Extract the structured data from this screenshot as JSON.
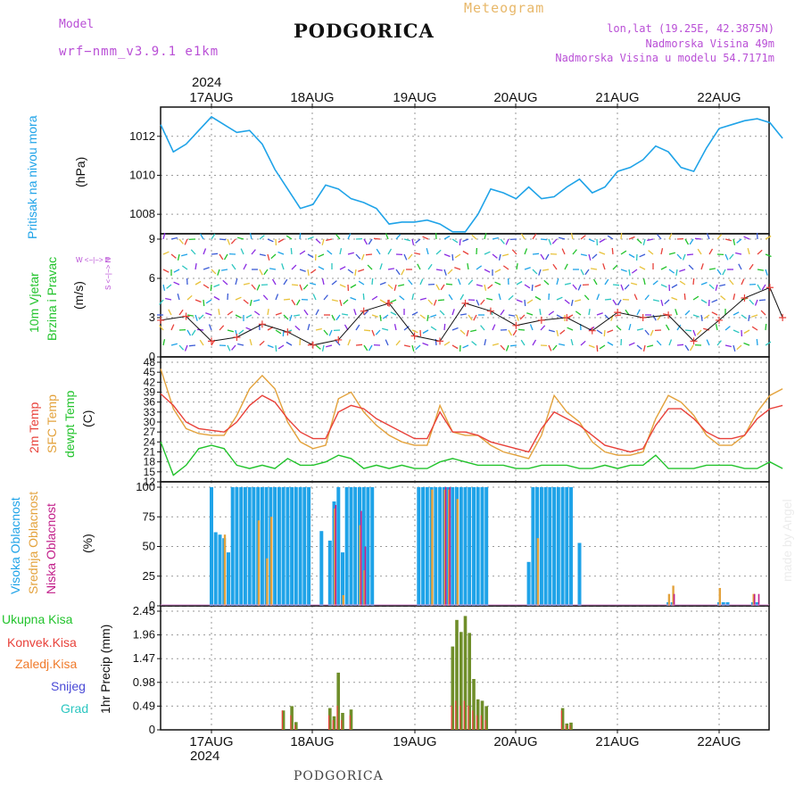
{
  "header": {
    "model_label": "Model",
    "model_name": "wrf−nmm_v3.9.1  e1km",
    "title": "PODGORICA",
    "meteogram": "Meteogram",
    "lonlat": "lon,lat (19.25E, 42.3875N)",
    "elevation": "Nadmorska Visina 49m",
    "model_elevation": "Nadmorska Visina u modelu 54.7171m",
    "year_top": "2024",
    "year_bottom": "2024",
    "footer": "PODGORICA",
    "watermark": "made by Angel"
  },
  "axis_titles": {
    "pressure_name": "Pritisak na nivou mora",
    "pressure_unit": "(hPa)",
    "wind_name_1": "10m Vjetar",
    "wind_name_2": "Brzina i Pravac",
    "wind_unit": "(m/s)",
    "wind_compass": "W <−|−> E",
    "wind_compass_ns": "S <−|−> N",
    "temp_name_1": "2m Temp",
    "temp_name_2": "SFC Temp",
    "temp_name_3": "dewpt Temp",
    "temp_unit": "(C)",
    "cloud_name_1": "Visoka Oblacnost",
    "cloud_name_2": "Srednja Oblacnost",
    "cloud_name_3": "Niska Oblacnost",
    "cloud_unit": "(%)",
    "precip_unit": "1hr Precip (mm)"
  },
  "precip_legend": [
    "Ukupna Kisa",
    "Konvek.Kisa",
    "Zaledj.Kisa",
    "Snijeg",
    "Grad"
  ],
  "colors": {
    "pressure": "#1fa3e8",
    "temp2m": "#e8413a",
    "sfc": "#e3a23c",
    "dewpt": "#22c32c",
    "high_cloud": "#1fa3e8",
    "mid_cloud": "#e3a23c",
    "low_cloud": "#c21f8a",
    "total_rain": "#6f8e2a",
    "conv_rain": "#e8413a",
    "freezing": "#f07a2a",
    "snow": "#4a4ad6",
    "hail": "#2bc6c0",
    "legend_total": "#22c32c",
    "legend_conv": "#e8413a",
    "legend_freezing": "#f07a2a",
    "legend_snow": "#4a4ad6",
    "legend_hail": "#2bc6c0"
  },
  "chart_data": [
    {
      "type": "line",
      "panel": "pressure",
      "x": [
        "16AUG12",
        "16AUG15",
        "16AUG18",
        "16AUG21",
        "17AUG00",
        "17AUG03",
        "17AUG06",
        "17AUG09",
        "17AUG12",
        "17AUG15",
        "17AUG18",
        "17AUG21",
        "18AUG00",
        "18AUG03",
        "18AUG06",
        "18AUG09",
        "18AUG12",
        "18AUG15",
        "18AUG18",
        "18AUG21",
        "19AUG00",
        "19AUG03",
        "19AUG06",
        "19AUG09",
        "19AUG12",
        "19AUG15",
        "19AUG18",
        "19AUG21",
        "20AUG00",
        "20AUG03",
        "20AUG06",
        "20AUG09",
        "20AUG12",
        "20AUG15",
        "20AUG18",
        "20AUG21",
        "21AUG00",
        "21AUG03",
        "21AUG06",
        "21AUG09",
        "21AUG12",
        "21AUG15",
        "21AUG18",
        "21AUG21",
        "22AUG00",
        "22AUG03",
        "22AUG06",
        "22AUG09",
        "22AUG12",
        "22AUG15"
      ],
      "series": [
        {
          "name": "Pritisak na nivou mora",
          "values": [
            1012.6,
            1011.2,
            1011.6,
            1012.3,
            1013.0,
            1012.6,
            1012.2,
            1012.3,
            1011.6,
            1010.3,
            1009.3,
            1008.3,
            1008.5,
            1009.5,
            1009.3,
            1008.8,
            1008.6,
            1008.3,
            1007.5,
            1007.6,
            1007.6,
            1007.7,
            1007.5,
            1007.1,
            1007.1,
            1008.0,
            1009.3,
            1009.1,
            1008.8,
            1009.4,
            1008.8,
            1008.9,
            1009.4,
            1009.8,
            1009.1,
            1009.4,
            1010.2,
            1010.4,
            1010.8,
            1011.5,
            1011.2,
            1010.4,
            1010.2,
            1011.4,
            1012.4,
            1012.6,
            1012.8,
            1012.9,
            1012.7,
            1011.9
          ]
        }
      ],
      "ylim": [
        1007.0,
        1013.5
      ],
      "yticks": [
        1008,
        1010,
        1012
      ]
    },
    {
      "type": "line",
      "panel": "wind",
      "x": [
        "16AUG12",
        "16AUG18",
        "17AUG00",
        "17AUG06",
        "17AUG12",
        "17AUG18",
        "18AUG00",
        "18AUG06",
        "18AUG12",
        "18AUG18",
        "19AUG00",
        "19AUG06",
        "19AUG12",
        "19AUG18",
        "20AUG00",
        "20AUG06",
        "20AUG12",
        "20AUG18",
        "21AUG00",
        "21AUG06",
        "21AUG12",
        "21AUG18",
        "22AUG00",
        "22AUG06",
        "22AUG12",
        "22AUG15"
      ],
      "series": [
        {
          "name": "10m Vjetar",
          "values": [
            2.8,
            3.1,
            1.2,
            1.5,
            2.5,
            1.9,
            0.9,
            1.3,
            3.5,
            4.1,
            1.6,
            1.2,
            4.1,
            3.5,
            2.4,
            2.8,
            3.0,
            2.0,
            3.4,
            3.0,
            3.2,
            1.2,
            2.8,
            4.5,
            5.3,
            3.0
          ]
        }
      ],
      "ylim": [
        0,
        9
      ],
      "yticks": [
        0,
        3,
        6,
        9
      ]
    },
    {
      "type": "line",
      "panel": "temperature",
      "x": [
        "16AUG12",
        "16AUG15",
        "16AUG18",
        "16AUG21",
        "17AUG00",
        "17AUG03",
        "17AUG06",
        "17AUG09",
        "17AUG12",
        "17AUG15",
        "17AUG18",
        "17AUG21",
        "18AUG00",
        "18AUG03",
        "18AUG06",
        "18AUG09",
        "18AUG12",
        "18AUG15",
        "18AUG18",
        "18AUG21",
        "19AUG00",
        "19AUG03",
        "19AUG06",
        "19AUG09",
        "19AUG12",
        "19AUG15",
        "19AUG18",
        "19AUG21",
        "20AUG00",
        "20AUG03",
        "20AUG06",
        "20AUG09",
        "20AUG12",
        "20AUG15",
        "20AUG18",
        "20AUG21",
        "21AUG00",
        "21AUG03",
        "21AUG06",
        "21AUG09",
        "21AUG12",
        "21AUG15",
        "21AUG18",
        "21AUG21",
        "22AUG00",
        "22AUG03",
        "22AUG06",
        "22AUG09",
        "22AUG12",
        "22AUG15"
      ],
      "series": [
        {
          "name": "2m Temp",
          "values": [
            38.5,
            35,
            30,
            28,
            27.5,
            27,
            30,
            35,
            38,
            36,
            31,
            27,
            25,
            25,
            33,
            35,
            34,
            31,
            29,
            27,
            25,
            25,
            33,
            27,
            27,
            26,
            24,
            23,
            22,
            21,
            28,
            33,
            31,
            29,
            26,
            23,
            22,
            21,
            22,
            29,
            34,
            34,
            31,
            27,
            25,
            25,
            26,
            31,
            34,
            35
          ]
        },
        {
          "name": "SFC Temp",
          "values": [
            46,
            34,
            28,
            26.5,
            26,
            26,
            32,
            40,
            44,
            40,
            30,
            24,
            22,
            23,
            37,
            39,
            33,
            29,
            26,
            24,
            23,
            23,
            35,
            27,
            26,
            26,
            23,
            21,
            20,
            19,
            26,
            38,
            33,
            30,
            24,
            21,
            20,
            20,
            21,
            31,
            38,
            36,
            32,
            26,
            23,
            23,
            26,
            33,
            38,
            40
          ]
        },
        {
          "name": "dewpt Temp",
          "values": [
            24,
            14,
            17,
            22,
            23,
            22,
            17,
            16,
            17,
            16,
            19,
            17,
            17,
            18,
            20,
            19,
            16,
            17,
            16,
            17,
            16,
            16,
            18,
            19,
            18,
            17,
            17,
            17,
            16,
            16,
            17,
            17,
            17,
            16,
            16,
            17,
            16,
            17,
            17,
            20,
            16,
            16,
            16,
            17,
            17,
            17,
            16,
            16,
            18,
            16
          ]
        }
      ],
      "ylim": [
        12,
        48
      ],
      "yticks": [
        12,
        15,
        18,
        21,
        24,
        27,
        30,
        33,
        36,
        39,
        42,
        45,
        48
      ]
    },
    {
      "type": "bar",
      "panel": "cloud",
      "categories": [
        "17AUG00",
        "17AUG01",
        "17AUG02",
        "17AUG03",
        "17AUG04",
        "17AUG05",
        "17AUG06",
        "17AUG07",
        "17AUG08",
        "17AUG09",
        "17AUG10",
        "17AUG11",
        "17AUG12",
        "17AUG13",
        "17AUG14",
        "17AUG15",
        "17AUG16",
        "17AUG17",
        "17AUG18",
        "17AUG19",
        "17AUG20",
        "17AUG21",
        "17AUG22",
        "17AUG23",
        "18AUG02",
        "18AUG04",
        "18AUG05",
        "18AUG06",
        "18AUG07",
        "18AUG08",
        "18AUG09",
        "18AUG10",
        "18AUG11",
        "18AUG12",
        "18AUG13",
        "18AUG14",
        "19AUG01",
        "19AUG02",
        "19AUG03",
        "19AUG04",
        "19AUG05",
        "19AUG06",
        "19AUG07",
        "19AUG08",
        "19AUG09",
        "19AUG10",
        "19AUG11",
        "19AUG12",
        "19AUG13",
        "19AUG14",
        "19AUG15",
        "19AUG16",
        "19AUG17",
        "20AUG03",
        "20AUG04",
        "20AUG05",
        "20AUG06",
        "20AUG07",
        "20AUG08",
        "20AUG09",
        "20AUG10",
        "20AUG11",
        "20AUG12",
        "20AUG13",
        "20AUG15",
        "21AUG12",
        "21AUG13",
        "22AUG00",
        "22AUG01",
        "22AUG02",
        "22AUG08",
        "22AUG09"
      ],
      "series": [
        {
          "name": "Visoka Oblacnost",
          "values": [
            100,
            62,
            60,
            57,
            45,
            100,
            100,
            100,
            100,
            100,
            100,
            100,
            100,
            100,
            100,
            100,
            100,
            100,
            100,
            100,
            100,
            100,
            100,
            100,
            63,
            55,
            88,
            100,
            45,
            100,
            100,
            100,
            100,
            100,
            100,
            100,
            100,
            100,
            100,
            100,
            100,
            100,
            100,
            100,
            100,
            100,
            100,
            100,
            100,
            100,
            100,
            100,
            100,
            37,
            100,
            100,
            100,
            100,
            100,
            100,
            100,
            100,
            100,
            100,
            53,
            3,
            3,
            3,
            3,
            3,
            3,
            3
          ]
        },
        {
          "name": "Srednja Oblacnost",
          "values": [
            0,
            0,
            0,
            60,
            0,
            0,
            0,
            0,
            0,
            0,
            0,
            72,
            0,
            40,
            75,
            0,
            0,
            0,
            0,
            0,
            0,
            0,
            0,
            0,
            0,
            0,
            82,
            0,
            9,
            0,
            0,
            0,
            68,
            30,
            0,
            0,
            0,
            0,
            0,
            98,
            0,
            0,
            98,
            98,
            0,
            90,
            0,
            0,
            0,
            0,
            0,
            0,
            0,
            0,
            0,
            57,
            0,
            0,
            0,
            0,
            0,
            0,
            0,
            0,
            0,
            10,
            17,
            15,
            0,
            0,
            10,
            0
          ]
        },
        {
          "name": "Niska Oblacnost",
          "values": [
            0,
            0,
            0,
            0,
            0,
            0,
            0,
            0,
            0,
            0,
            0,
            0,
            0,
            0,
            0,
            0,
            0,
            0,
            0,
            0,
            0,
            0,
            0,
            0,
            0,
            0,
            85,
            0,
            0,
            0,
            0,
            0,
            80,
            50,
            0,
            0,
            0,
            0,
            0,
            0,
            0,
            0,
            100,
            100,
            0,
            0,
            0,
            0,
            0,
            0,
            0,
            0,
            0,
            0,
            0,
            0,
            0,
            0,
            0,
            0,
            0,
            0,
            0,
            0,
            0,
            0,
            10,
            0,
            0,
            0,
            10,
            10
          ]
        }
      ],
      "ylim": [
        0,
        100
      ],
      "yticks": [
        0,
        25,
        50,
        75,
        100
      ]
    },
    {
      "type": "bar",
      "panel": "precipitation",
      "categories": [
        "17AUG17",
        "17AUG19",
        "17AUG20",
        "18AUG04",
        "18AUG05",
        "18AUG06",
        "18AUG07",
        "18AUG09",
        "19AUG09",
        "19AUG10",
        "19AUG11",
        "19AUG12",
        "19AUG13",
        "19AUG14",
        "19AUG15",
        "19AUG16",
        "19AUG17",
        "20AUG11",
        "20AUG12",
        "20AUG13"
      ],
      "series": [
        {
          "name": "Ukupna Kisa",
          "values": [
            0.4,
            0.49,
            0.16,
            0.45,
            0.28,
            1.18,
            0.35,
            0.42,
            1.72,
            2.27,
            2.02,
            2.35,
            2.0,
            1.05,
            0.63,
            0.6,
            0.49,
            0.45,
            0.13,
            0.15
          ]
        },
        {
          "name": "Konvek.Kisa",
          "values": [
            0.4,
            0.3,
            0.1,
            0.3,
            0.2,
            0.5,
            0.2,
            0.3,
            0.5,
            0.6,
            0.5,
            0.6,
            0.5,
            0.4,
            0.3,
            0.3,
            0.2,
            0.4,
            0.1,
            0.1
          ]
        }
      ],
      "ylim": [
        0,
        2.45
      ],
      "yticks": [
        0,
        0.49,
        0.98,
        1.47,
        1.96,
        2.45
      ]
    }
  ],
  "x_axis": {
    "labels": [
      "17AUG",
      "18AUG",
      "19AUG",
      "20AUG",
      "21AUG",
      "22AUG"
    ]
  }
}
